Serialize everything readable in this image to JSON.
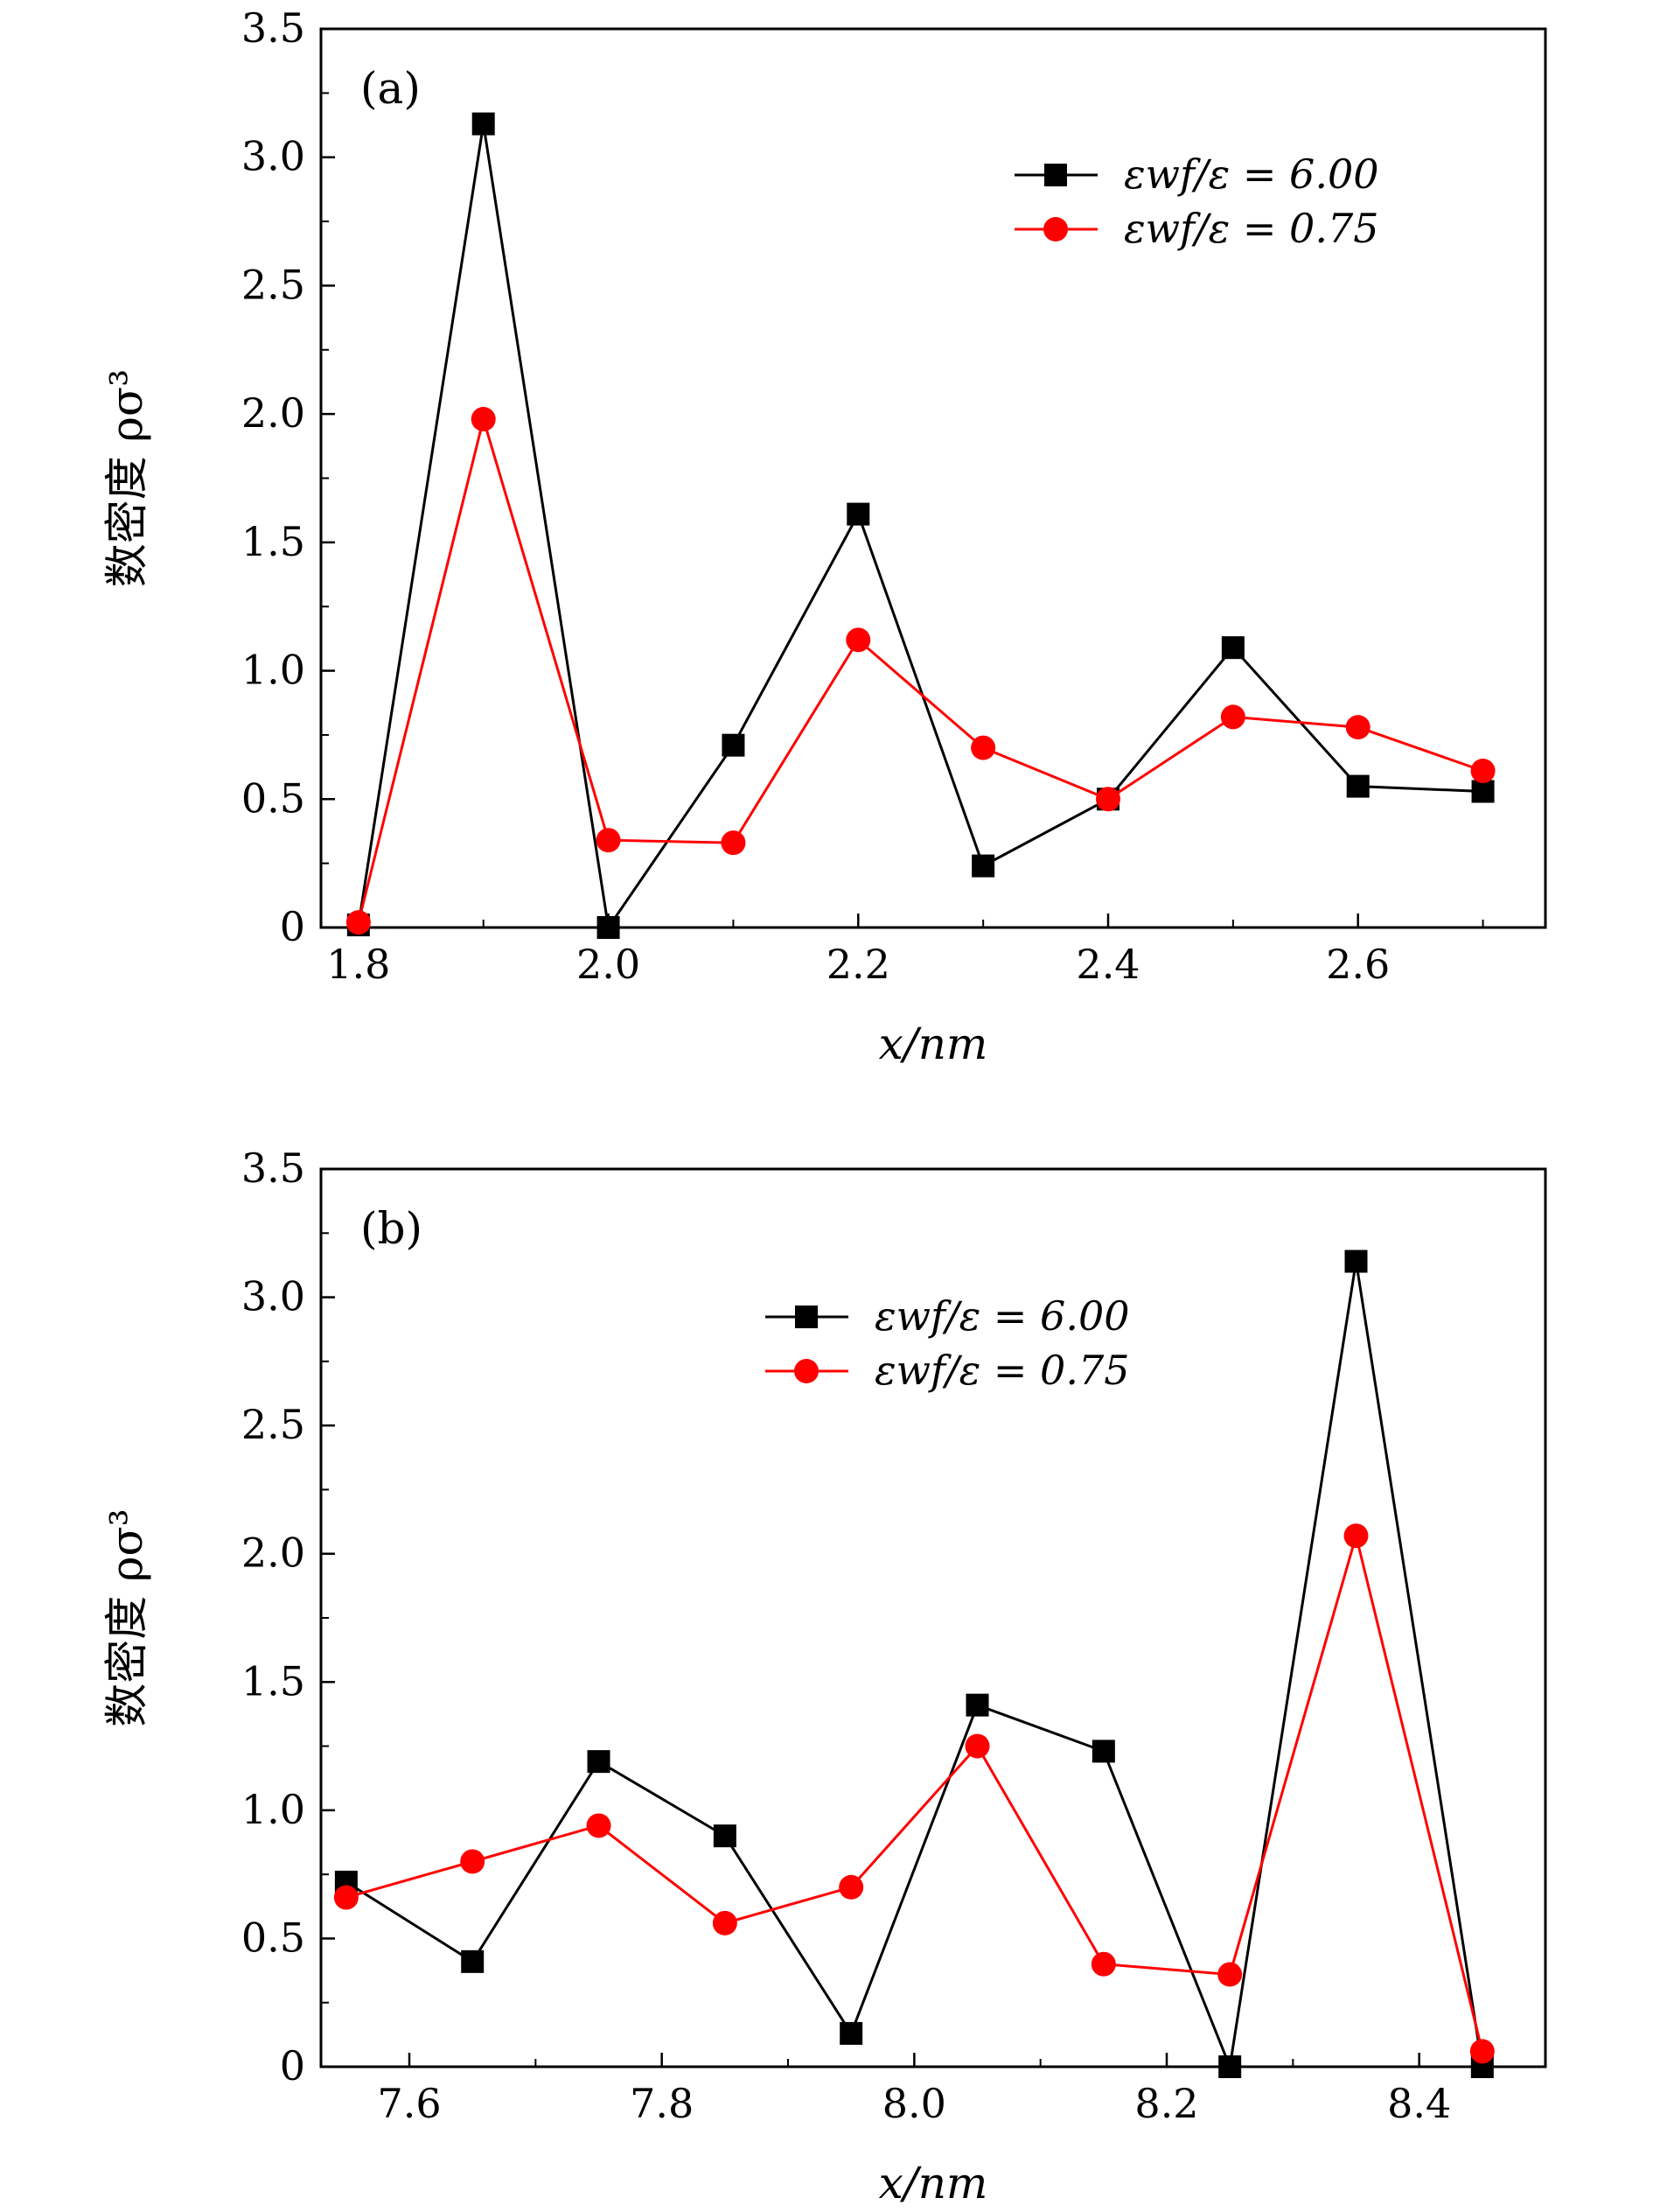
{
  "chart_data": [
    {
      "type": "line",
      "panel_label": "(a)",
      "xlabel": "x/nm",
      "ylabel": "数密度 ρσ³",
      "xlim": [
        1.77,
        2.75
      ],
      "ylim": [
        0,
        3.5
      ],
      "xticks": [
        1.8,
        2.0,
        2.2,
        2.4,
        2.6
      ],
      "xtick_labels": [
        "1.8",
        "2.0",
        "2.2",
        "2.4",
        "2.6"
      ],
      "yticks": [
        0,
        0.5,
        1.0,
        1.5,
        2.0,
        2.5,
        3.0,
        3.5
      ],
      "ytick_labels": [
        "0",
        "0.5",
        "1.0",
        "1.5",
        "2.0",
        "2.5",
        "3.0",
        "3.5"
      ],
      "legend_position": "top-right",
      "series": [
        {
          "name": "εwf/ε = 6.00",
          "color": "#000000",
          "marker": "square",
          "x": [
            1.8,
            1.9,
            2.0,
            2.1,
            2.2,
            2.3,
            2.4,
            2.5,
            2.6,
            2.7
          ],
          "y": [
            0.01,
            3.13,
            0.0,
            0.71,
            1.61,
            0.24,
            0.5,
            1.09,
            0.55,
            0.53
          ]
        },
        {
          "name": "εwf/ε = 0.75",
          "color": "#ff0000",
          "marker": "circle",
          "x": [
            1.8,
            1.9,
            2.0,
            2.1,
            2.2,
            2.3,
            2.4,
            2.5,
            2.6,
            2.7
          ],
          "y": [
            0.02,
            1.98,
            0.34,
            0.33,
            1.12,
            0.7,
            0.5,
            0.82,
            0.78,
            0.61
          ]
        }
      ]
    },
    {
      "type": "line",
      "panel_label": "(b)",
      "xlabel": "x/nm",
      "ylabel": "数密度 ρσ³",
      "xlim": [
        7.53,
        8.5
      ],
      "ylim": [
        0,
        3.5
      ],
      "xticks": [
        7.6,
        7.8,
        8.0,
        8.2,
        8.4
      ],
      "xtick_labels": [
        "7.6",
        "7.8",
        "8.0",
        "8.2",
        "8.4"
      ],
      "yticks": [
        0,
        0.5,
        1.0,
        1.5,
        2.0,
        2.5,
        3.0,
        3.5
      ],
      "ytick_labels": [
        "0",
        "0.5",
        "1.0",
        "1.5",
        "2.0",
        "2.5",
        "3.0",
        "3.5"
      ],
      "legend_position": "top-center",
      "series": [
        {
          "name": "εwf/ε = 6.00",
          "color": "#000000",
          "marker": "square",
          "x": [
            7.55,
            7.65,
            7.75,
            7.85,
            7.95,
            8.05,
            8.15,
            8.25,
            8.35,
            8.45
          ],
          "y": [
            0.72,
            0.41,
            1.19,
            0.9,
            0.13,
            1.41,
            1.23,
            0.0,
            3.14,
            0.0
          ]
        },
        {
          "name": "εwf/ε = 0.75",
          "color": "#ff0000",
          "marker": "circle",
          "x": [
            7.55,
            7.65,
            7.75,
            7.85,
            7.95,
            8.05,
            8.15,
            8.25,
            8.35,
            8.45
          ],
          "y": [
            0.66,
            0.8,
            0.94,
            0.56,
            0.7,
            1.25,
            0.4,
            0.36,
            2.07,
            0.06
          ]
        }
      ]
    }
  ]
}
